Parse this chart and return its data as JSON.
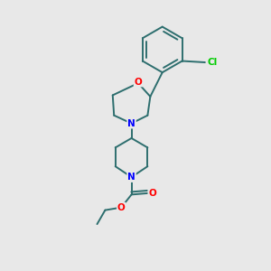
{
  "background_color": "#e8e8e8",
  "bond_color": "#2d6e6e",
  "atom_colors": {
    "O": "#ff0000",
    "N": "#0000ff",
    "Cl": "#00cc00",
    "C": "#000000"
  },
  "line_width": 1.4,
  "figsize": [
    3.0,
    3.0
  ],
  "dpi": 100,
  "xlim": [
    0,
    10
  ],
  "ylim": [
    0,
    10
  ]
}
